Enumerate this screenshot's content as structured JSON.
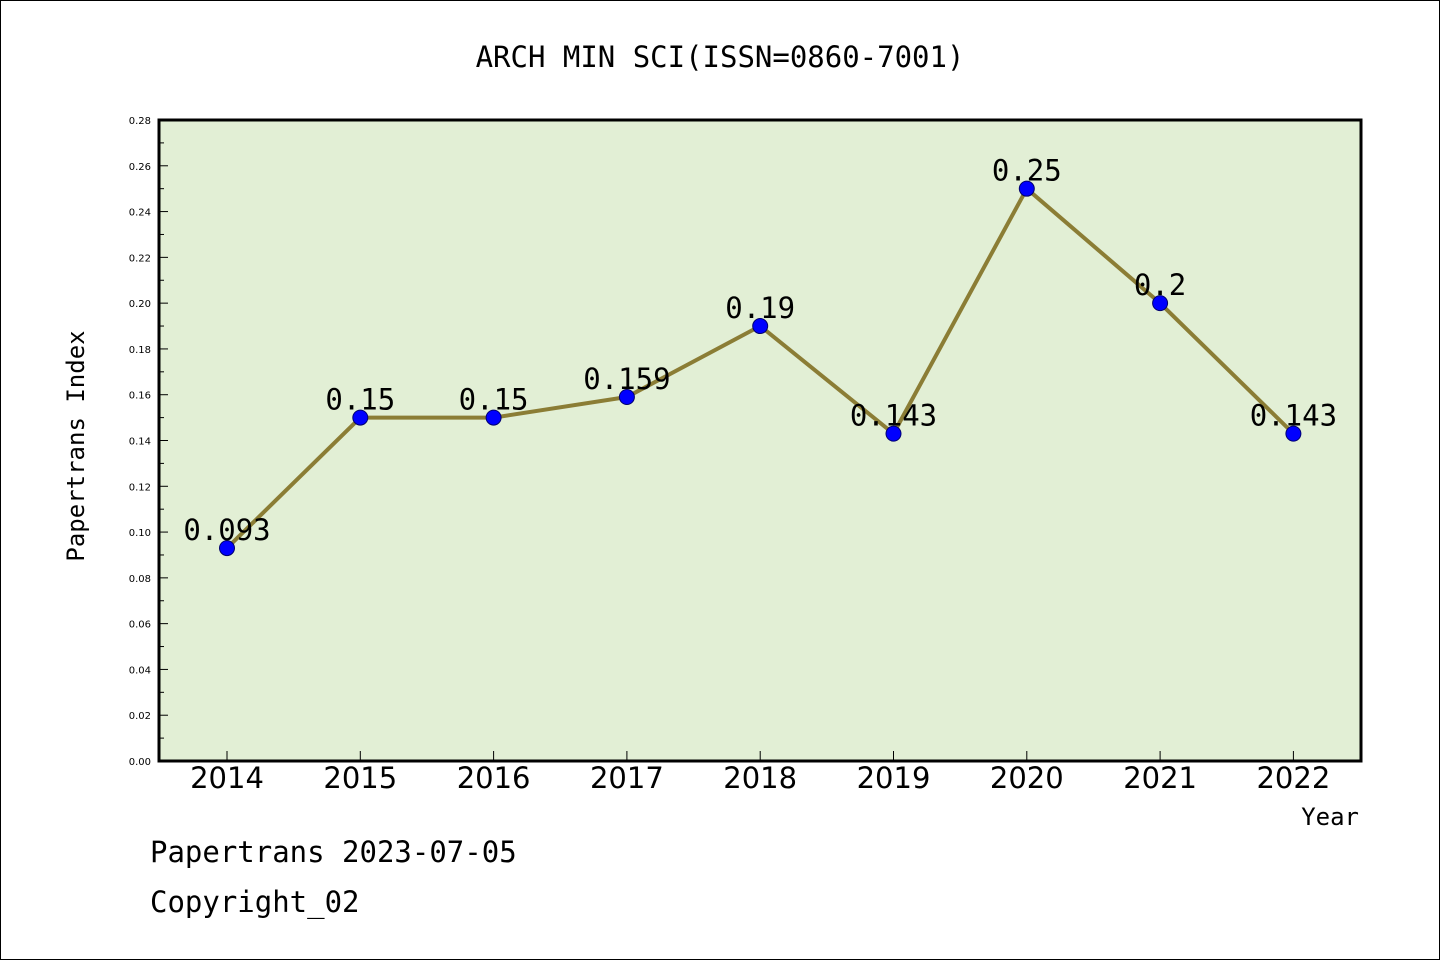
{
  "chart_data": {
    "type": "line",
    "title": "ARCH MIN SCI(ISSN=0860-7001)",
    "xlabel": "Year",
    "ylabel": "Papertrans Index",
    "categories": [
      "2014",
      "2015",
      "2016",
      "2017",
      "2018",
      "2019",
      "2020",
      "2021",
      "2022"
    ],
    "values": [
      0.093,
      0.15,
      0.15,
      0.159,
      0.19,
      0.143,
      0.25,
      0.2,
      0.143
    ],
    "data_labels": [
      "0.093",
      "0.15",
      "0.15",
      "0.159",
      "0.19",
      "0.143",
      "0.25",
      "0.2",
      "0.143"
    ],
    "ylim": [
      0,
      0.28
    ],
    "yticks": [
      "0.00",
      "0.02",
      "0.04",
      "0.06",
      "0.08",
      "0.10",
      "0.12",
      "0.14",
      "0.16",
      "0.18",
      "0.20",
      "0.22",
      "0.24",
      "0.26",
      "0.28"
    ],
    "grid": false,
    "legend": "none",
    "colors": {
      "plot_background": "#e2efd5",
      "line": "#8b7d35",
      "marker": "#0000ff"
    }
  },
  "footer": {
    "line1": "Papertrans 2023-07-05",
    "line2": "Copyright_02"
  }
}
